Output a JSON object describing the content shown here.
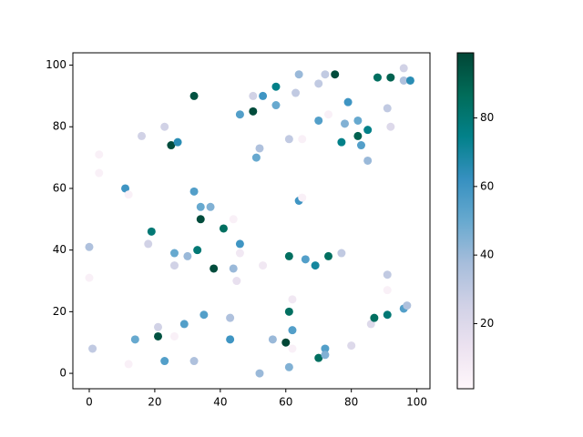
{
  "chart_data": {
    "type": "scatter",
    "xlim": [
      -5,
      104
    ],
    "ylim": [
      -5,
      104
    ],
    "xticks": [
      0,
      20,
      40,
      60,
      80,
      100
    ],
    "yticks": [
      0,
      20,
      40,
      60,
      80,
      100
    ],
    "colormap": "PuBuGn",
    "clim": [
      1,
      99
    ],
    "cticks": [
      20,
      40,
      60,
      80
    ],
    "series": [
      {
        "x": [
          0,
          0,
          1,
          3,
          3,
          11,
          12,
          12,
          14,
          16,
          18,
          19,
          21,
          21,
          23,
          23,
          25,
          26,
          26,
          26,
          27,
          29,
          30,
          32,
          32,
          32,
          33,
          34,
          34,
          35,
          37,
          38,
          41,
          43,
          43,
          44,
          44,
          45,
          46,
          46,
          46,
          50,
          50,
          51,
          52,
          52,
          53,
          53,
          56,
          57,
          57,
          60,
          61,
          61,
          61,
          61,
          62,
          62,
          62,
          63,
          64,
          64,
          65,
          65,
          66,
          69,
          70,
          70,
          70,
          72,
          72,
          72,
          73,
          73,
          75,
          77,
          77,
          78,
          79,
          80,
          82,
          82,
          83,
          85,
          85,
          86,
          87,
          88,
          91,
          91,
          91,
          91,
          92,
          92,
          96,
          96,
          96,
          97,
          98
        ],
        "y": [
          41,
          31,
          8,
          71,
          65,
          60,
          58,
          3,
          11,
          77,
          42,
          46,
          15,
          12,
          80,
          4,
          74,
          39,
          35,
          12,
          75,
          16,
          38,
          90,
          59,
          4,
          40,
          54,
          50,
          19,
          54,
          34,
          47,
          18,
          11,
          50,
          34,
          30,
          42,
          39,
          84,
          90,
          85,
          70,
          73,
          0,
          90,
          35,
          11,
          93,
          87,
          10,
          76,
          38,
          20,
          2,
          24,
          14,
          8,
          91,
          97,
          56,
          76,
          57,
          37,
          35,
          94,
          82,
          5,
          97,
          8,
          6,
          84,
          38,
          97,
          39,
          75,
          81,
          88,
          9,
          82,
          77,
          74,
          79,
          69,
          16,
          18,
          96,
          86,
          32,
          27,
          19,
          96,
          80,
          99,
          95,
          21,
          22,
          95
        ],
        "c": [
          35,
          5,
          30,
          5,
          5,
          60,
          5,
          5,
          50,
          25,
          25,
          80,
          25,
          95,
          25,
          55,
          97,
          50,
          25,
          5,
          65,
          55,
          40,
          95,
          55,
          35,
          80,
          50,
          97,
          55,
          45,
          97,
          85,
          35,
          60,
          5,
          40,
          15,
          60,
          10,
          55,
          25,
          97,
          50,
          35,
          40,
          60,
          10,
          40,
          75,
          50,
          99,
          30,
          85,
          85,
          45,
          10,
          55,
          5,
          30,
          40,
          60,
          5,
          5,
          55,
          70,
          30,
          55,
          85,
          30,
          55,
          45,
          5,
          85,
          97,
          30,
          75,
          45,
          60,
          20,
          50,
          90,
          55,
          75,
          40,
          20,
          85,
          85,
          30,
          30,
          5,
          80,
          90,
          20,
          25,
          35,
          55,
          35,
          65
        ]
      }
    ]
  }
}
